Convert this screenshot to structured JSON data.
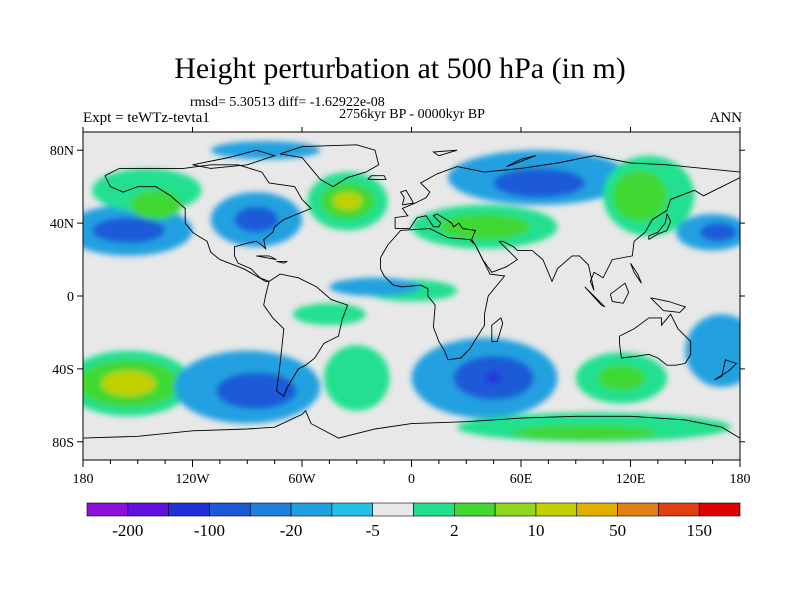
{
  "header": {
    "title": "Height perturbation at 500 hPa (in m)",
    "stats": "rmsd= 5.30513 diff= -1.62922e-08",
    "period": "2756kyr BP - 0000kyr BP",
    "experiment": "Expt = teWTz-tevta1",
    "season": "ANN"
  },
  "map": {
    "projection": "cylindrical equidistant",
    "lon_range": [
      -180,
      180
    ],
    "lat_range": [
      -90,
      90
    ],
    "lon_ticks": [
      {
        "value": -180,
        "label": "180"
      },
      {
        "value": -120,
        "label": "120W"
      },
      {
        "value": -60,
        "label": "60W"
      },
      {
        "value": 0,
        "label": "0"
      },
      {
        "value": 60,
        "label": "60E"
      },
      {
        "value": 120,
        "label": "120E"
      },
      {
        "value": 180,
        "label": "180"
      }
    ],
    "lat_ticks": [
      {
        "value": 80,
        "label": "80N"
      },
      {
        "value": 40,
        "label": "40N"
      },
      {
        "value": 0,
        "label": "0"
      },
      {
        "value": -40,
        "label": "40S"
      },
      {
        "value": -80,
        "label": "80S"
      }
    ],
    "background_color": "#e8e8e8",
    "features": [
      {
        "name": "n-pacific-low",
        "lon": -155,
        "lat": 36,
        "rlon": 35,
        "rlat": 14,
        "level": "-5"
      },
      {
        "name": "n-pacific-low-core",
        "lon": -155,
        "lat": 36,
        "rlon": 20,
        "rlat": 7,
        "level": "-20"
      },
      {
        "name": "w-na-high",
        "lon": -145,
        "lat": 58,
        "rlon": 30,
        "rlat": 12,
        "level": "2"
      },
      {
        "name": "w-na-high-core",
        "lon": -140,
        "lat": 50,
        "rlon": 14,
        "rlat": 8,
        "level": "10"
      },
      {
        "name": "e-us-low",
        "lon": -85,
        "lat": 42,
        "rlon": 25,
        "rlat": 15,
        "level": "-5"
      },
      {
        "name": "e-us-low-core",
        "lon": -85,
        "lat": 42,
        "rlon": 12,
        "rlat": 7,
        "level": "-20"
      },
      {
        "name": "n-atlantic-high",
        "lon": -35,
        "lat": 52,
        "rlon": 22,
        "rlat": 16,
        "level": "2"
      },
      {
        "name": "n-atlantic-high-core",
        "lon": -35,
        "lat": 52,
        "rlon": 15,
        "rlat": 10,
        "level": "10"
      },
      {
        "name": "n-atlantic-high-center",
        "lon": -35,
        "lat": 52,
        "rlon": 8,
        "rlat": 5,
        "level": "50"
      },
      {
        "name": "arctic-low",
        "lon": -80,
        "lat": 80,
        "rlon": 30,
        "rlat": 5,
        "level": "-5"
      },
      {
        "name": "eurasia-low",
        "lon": 70,
        "lat": 65,
        "rlon": 50,
        "rlat": 15,
        "level": "-5"
      },
      {
        "name": "eurasia-low-core",
        "lon": 70,
        "lat": 62,
        "rlon": 25,
        "rlat": 8,
        "level": "-20"
      },
      {
        "name": "mediterranean-high",
        "lon": 40,
        "lat": 38,
        "rlon": 40,
        "rlat": 12,
        "level": "2"
      },
      {
        "name": "mediterranean-high-core",
        "lon": 40,
        "lat": 38,
        "rlon": 25,
        "rlat": 7,
        "level": "10"
      },
      {
        "name": "siberia-high",
        "lon": 130,
        "lat": 55,
        "rlon": 25,
        "rlat": 22,
        "level": "2"
      },
      {
        "name": "siberia-high-core",
        "lon": 125,
        "lat": 55,
        "rlon": 15,
        "rlat": 14,
        "level": "10"
      },
      {
        "name": "nw-pacific-low",
        "lon": 165,
        "lat": 35,
        "rlon": 20,
        "rlat": 10,
        "level": "-5"
      },
      {
        "name": "nw-pacific-low-core",
        "lon": 168,
        "lat": 35,
        "rlon": 10,
        "rlat": 5,
        "level": "-20"
      },
      {
        "name": "s-pacific-high",
        "lon": -155,
        "lat": -48,
        "rlon": 35,
        "rlat": 18,
        "level": "2"
      },
      {
        "name": "s-pacific-high-core",
        "lon": -155,
        "lat": -48,
        "rlon": 28,
        "rlat": 13,
        "level": "10"
      },
      {
        "name": "s-pacific-high-center",
        "lon": -155,
        "lat": -48,
        "rlon": 15,
        "rlat": 7,
        "level": "50"
      },
      {
        "name": "se-pacific-low",
        "lon": -90,
        "lat": -50,
        "rlon": 40,
        "rlat": 20,
        "level": "-5"
      },
      {
        "name": "se-pacific-low-core",
        "lon": -85,
        "lat": -52,
        "rlon": 22,
        "rlat": 10,
        "level": "-20"
      },
      {
        "name": "s-atlantic-high",
        "lon": -30,
        "lat": -45,
        "rlon": 18,
        "rlat": 18,
        "level": "2"
      },
      {
        "name": "s-indian-low",
        "lon": 40,
        "lat": -45,
        "rlon": 40,
        "rlat": 22,
        "level": "-5"
      },
      {
        "name": "s-indian-low-core",
        "lon": 45,
        "lat": -45,
        "rlon": 22,
        "rlat": 12,
        "level": "-20"
      },
      {
        "name": "s-indian-low-center",
        "lon": 45,
        "lat": -45,
        "rlon": 4,
        "rlat": 3,
        "level": "-100"
      },
      {
        "name": "w-aus-high",
        "lon": 115,
        "lat": -45,
        "rlon": 25,
        "rlat": 14,
        "level": "2"
      },
      {
        "name": "w-aus-high-core",
        "lon": 115,
        "lat": -45,
        "rlon": 13,
        "rlat": 7,
        "level": "10"
      },
      {
        "name": "e-aus-low",
        "lon": 170,
        "lat": -30,
        "rlon": 20,
        "rlat": 20,
        "level": "-5"
      },
      {
        "name": "antarctic-high",
        "lon": 100,
        "lat": -72,
        "rlon": 75,
        "rlat": 8,
        "level": "2"
      },
      {
        "name": "antarctic-high-core",
        "lon": 95,
        "lat": -75,
        "rlon": 40,
        "rlat": 4,
        "level": "10"
      },
      {
        "name": "trop-high-1",
        "lon": -45,
        "lat": -10,
        "rlon": 20,
        "rlat": 6,
        "level": "2"
      },
      {
        "name": "trop-high-2",
        "lon": 0,
        "lat": 3,
        "rlon": 25,
        "rlat": 6,
        "level": "2"
      },
      {
        "name": "trop-low-1",
        "lon": -20,
        "lat": 5,
        "rlon": 25,
        "rlat": 5,
        "level": "-5"
      }
    ]
  },
  "colorbar": {
    "levels": [
      "-200",
      "-100",
      "-20",
      "-5",
      "2",
      "10",
      "50",
      "150"
    ],
    "colors": [
      "#8c10d8",
      "#6010e0",
      "#2030d8",
      "#1d5ad8",
      "#2080e0",
      "#20a0e0",
      "#20c0e8",
      "#e8e8e8",
      "#20e090",
      "#40d830",
      "#90d820",
      "#c0d000",
      "#e0b000",
      "#e08010",
      "#e04010",
      "#e00000"
    ],
    "level_colors": {
      "-100": "#2030d8",
      "-20": "#1d5ad8",
      "-5": "#20a0e0",
      "2": "#20e090",
      "10": "#40d830",
      "50": "#c0d000"
    }
  },
  "ui": {
    "ocean_color": "#e8e8e8",
    "coastline_color": "#000000"
  }
}
